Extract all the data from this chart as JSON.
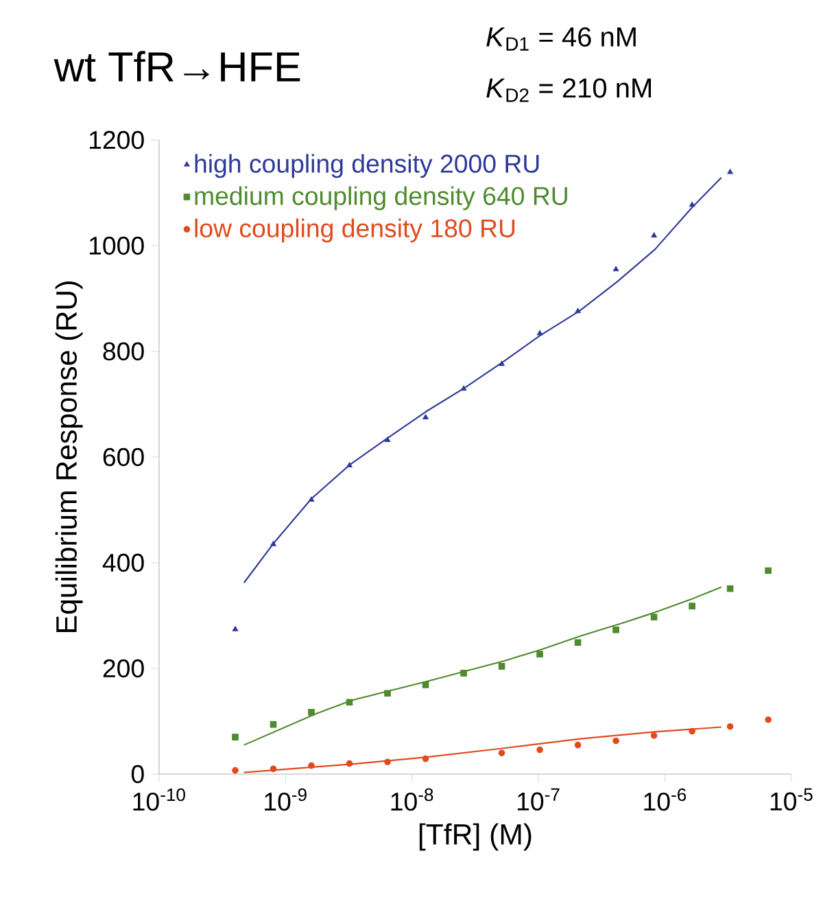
{
  "chart_data": {
    "type": "scatter",
    "title": "wt TfR→HFE",
    "annotations": [
      "*K*$_{D1}$ = 46 nM",
      "*K*$_{D2}$ = 210 nM"
    ],
    "xlabel": "[TfR] (M)",
    "ylabel": "Equilibrium Response (RU)",
    "log": "x",
    "grid": false,
    "legend": "top left",
    "xlim": [
      1e-10,
      1e-05
    ],
    "ylim": [
      0,
      1200
    ],
    "xticks": [
      {
        "value": 1e-10,
        "label": "10$^{-10}$"
      },
      {
        "value": 1e-09,
        "label": "10$^{-9}$"
      },
      {
        "value": 1e-08,
        "label": "10$^{-8}$"
      },
      {
        "value": 1e-07,
        "label": "10$^{-7}$"
      },
      {
        "value": 1e-06,
        "label": "10$^{-6}$"
      },
      {
        "value": 1e-05,
        "label": "10$^{-5}$"
      }
    ],
    "yticks": [
      0,
      200,
      400,
      600,
      800,
      1000,
      1200
    ],
    "series": [
      {
        "name": "high coupling density  2000 RU",
        "marker": "triangle",
        "color": "#2e3a9a",
        "x": [
          4e-10,
          8e-10,
          1.6e-09,
          3.2e-09,
          6.4e-09,
          1.28e-08,
          2.56e-08,
          5.12e-08,
          1.024e-07,
          2.048e-07,
          4.096e-07,
          8.192e-07,
          1.6384e-06,
          3.2768e-06
        ],
        "values": [
          274,
          435,
          519,
          584,
          632,
          675,
          729,
          776,
          834,
          876,
          955,
          1019,
          1077,
          1139
        ]
      },
      {
        "name": "medium coupling density  640 RU",
        "marker": "square",
        "color": "#4f8a2e",
        "x": [
          4e-10,
          8e-10,
          1.6e-09,
          3.2e-09,
          6.4e-09,
          1.28e-08,
          2.56e-08,
          5.12e-08,
          1.024e-07,
          2.048e-07,
          4.096e-07,
          8.192e-07,
          1.6384e-06,
          3.2768e-06,
          6.5536e-06
        ],
        "values": [
          70,
          94,
          117,
          136,
          153,
          169,
          191,
          204,
          227,
          249,
          273,
          297,
          318,
          351,
          385
        ]
      },
      {
        "name": "low coupling density  180 RU",
        "marker": "circle",
        "color": "#e04a1e",
        "x": [
          4e-10,
          8e-10,
          1.6e-09,
          3.2e-09,
          6.4e-09,
          1.28e-08,
          2.56e-08,
          5.12e-08,
          1.024e-07,
          2.048e-07,
          4.096e-07,
          8.192e-07,
          1.6384e-06,
          3.2768e-06,
          6.5536e-06
        ],
        "values": [
          7,
          10,
          16,
          20,
          23,
          29,
          null,
          40,
          46,
          55,
          63,
          73,
          81,
          90,
          103
        ]
      },
      {
        "type": "line",
        "marker": "none",
        "color": "#2e3a9a",
        "x": [
          4.69e-10,
          8.18e-10,
          1.6e-09,
          3.24e-09,
          6.32e-09,
          1.29e-08,
          2.61e-08,
          5.31e-08,
          1.03e-07,
          2.1e-07,
          4.2e-07,
          8.34e-07,
          1.62e-06,
          2.79e-06
        ],
        "values": [
          362,
          439,
          521,
          586,
          635,
          686,
          731,
          781,
          830,
          876,
          932,
          993,
          1071,
          1129
        ]
      },
      {
        "type": "line",
        "marker": "none",
        "color": "#4f8a2e",
        "x": [
          4.69e-10,
          1.73e-09,
          3.38e-09,
          1.29e-08,
          5.31e-08,
          1.03e-07,
          2.19e-07,
          4.63e-07,
          8.34e-07,
          1.62e-06,
          2.79e-06
        ],
        "values": [
          55,
          114,
          140,
          175,
          214,
          235,
          262,
          286,
          306,
          331,
          354
        ]
      },
      {
        "type": "line",
        "marker": "none",
        "color": "#e04a1e",
        "x": [
          4.69e-10,
          3.38e-09,
          1.29e-08,
          5.31e-08,
          2.19e-07,
          8.34e-07,
          2.79e-06
        ],
        "values": [
          3,
          19,
          32,
          49,
          67,
          80,
          89
        ]
      }
    ]
  }
}
